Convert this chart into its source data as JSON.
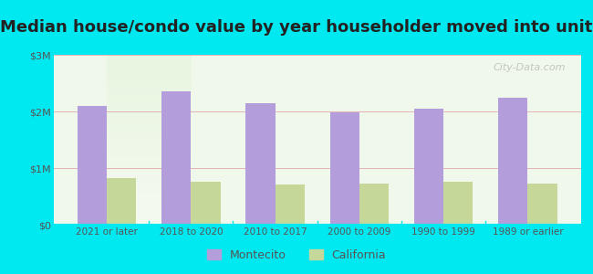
{
  "title": "Median house/condo value by year householder moved into unit",
  "categories": [
    "2021 or later",
    "2018 to 2020",
    "2010 to 2017",
    "2000 to 2009",
    "1990 to 1999",
    "1989 or earlier"
  ],
  "montecito_values": [
    2100000,
    2350000,
    2150000,
    1980000,
    2050000,
    2250000
  ],
  "california_values": [
    820000,
    760000,
    710000,
    730000,
    760000,
    730000
  ],
  "montecito_color": "#b39ddb",
  "california_color": "#c5d89a",
  "background_outer": "#00e8f0",
  "ylim": [
    0,
    3000000
  ],
  "yticks": [
    0,
    1000000,
    2000000,
    3000000
  ],
  "ytick_labels": [
    "$0",
    "$1M",
    "$2M",
    "$3M"
  ],
  "watermark": "City-Data.com",
  "legend_montecito": "Montecito",
  "legend_california": "California",
  "bar_width": 0.35,
  "grid_color": "#e0a0a8",
  "title_fontsize": 13,
  "title_color": "#222222"
}
